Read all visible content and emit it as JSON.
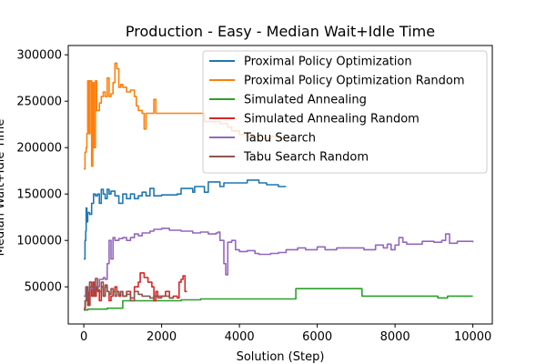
{
  "chart_data": {
    "type": "line",
    "title": "Production - Easy - Median Wait+Idle Time",
    "xlabel": "Solution (Step)",
    "ylabel": "Median Wait+Idle Time",
    "xlim": [
      -400,
      10500
    ],
    "ylim": [
      10000,
      310000
    ],
    "xticks": [
      0,
      2000,
      4000,
      6000,
      8000,
      10000
    ],
    "yticks": [
      50000,
      100000,
      150000,
      200000,
      250000,
      300000
    ],
    "legend_position": "top-right",
    "grid": false,
    "series": [
      {
        "name": "Proximal Policy Optimization",
        "color": "#1f77b4",
        "points": [
          [
            0,
            80000
          ],
          [
            20,
            80000
          ],
          [
            30,
            100000
          ],
          [
            50,
            110000
          ],
          [
            60,
            135000
          ],
          [
            80,
            120000
          ],
          [
            100,
            130000
          ],
          [
            150,
            128000
          ],
          [
            200,
            140000
          ],
          [
            250,
            150000
          ],
          [
            300,
            148000
          ],
          [
            350,
            150000
          ],
          [
            400,
            140000
          ],
          [
            450,
            155000
          ],
          [
            500,
            150000
          ],
          [
            550,
            145000
          ],
          [
            600,
            155000
          ],
          [
            650,
            150000
          ],
          [
            700,
            153000
          ],
          [
            800,
            148000
          ],
          [
            900,
            140000
          ],
          [
            1000,
            150000
          ],
          [
            1100,
            145000
          ],
          [
            1200,
            150000
          ],
          [
            1300,
            145000
          ],
          [
            1400,
            148000
          ],
          [
            1500,
            152000
          ],
          [
            1600,
            148000
          ],
          [
            1700,
            156000
          ],
          [
            1800,
            148000
          ],
          [
            2000,
            149000
          ],
          [
            2200,
            149000
          ],
          [
            2400,
            150000
          ],
          [
            2500,
            156000
          ],
          [
            2600,
            156000
          ],
          [
            2800,
            152000
          ],
          [
            2850,
            158000
          ],
          [
            3000,
            158000
          ],
          [
            3100,
            152000
          ],
          [
            3200,
            163000
          ],
          [
            3400,
            163000
          ],
          [
            3500,
            158000
          ],
          [
            3600,
            162000
          ],
          [
            4000,
            162000
          ],
          [
            4200,
            165000
          ],
          [
            4500,
            162000
          ],
          [
            4700,
            160000
          ],
          [
            5000,
            158000
          ],
          [
            5200,
            158000
          ]
        ]
      },
      {
        "name": "Proximal Policy Optimization Random",
        "color": "#ff7f0e",
        "points": [
          [
            0,
            177000
          ],
          [
            30,
            195000
          ],
          [
            60,
            200000
          ],
          [
            80,
            215000
          ],
          [
            100,
            272000
          ],
          [
            130,
            215000
          ],
          [
            160,
            272000
          ],
          [
            200,
            180000
          ],
          [
            230,
            270000
          ],
          [
            260,
            200000
          ],
          [
            300,
            272000
          ],
          [
            330,
            240000
          ],
          [
            360,
            240000
          ],
          [
            400,
            248000
          ],
          [
            450,
            255000
          ],
          [
            500,
            260000
          ],
          [
            550,
            255000
          ],
          [
            600,
            275000
          ],
          [
            650,
            255000
          ],
          [
            700,
            258000
          ],
          [
            750,
            270000
          ],
          [
            800,
            291000
          ],
          [
            850,
            285000
          ],
          [
            900,
            265000
          ],
          [
            950,
            268000
          ],
          [
            1000,
            265000
          ],
          [
            1100,
            260000
          ],
          [
            1200,
            262000
          ],
          [
            1300,
            255000
          ],
          [
            1350,
            245000
          ],
          [
            1400,
            240000
          ],
          [
            1500,
            237000
          ],
          [
            1550,
            220000
          ],
          [
            1600,
            237000
          ],
          [
            1700,
            237000
          ],
          [
            1800,
            252000
          ],
          [
            1850,
            237000
          ],
          [
            2000,
            237000
          ],
          [
            2500,
            237000
          ],
          [
            3000,
            237000
          ],
          [
            3100,
            228000
          ],
          [
            3300,
            228000
          ],
          [
            3500,
            226000
          ],
          [
            3700,
            222000
          ],
          [
            3800,
            218000
          ],
          [
            4000,
            214000
          ],
          [
            4200,
            212000
          ],
          [
            4500,
            210000
          ],
          [
            4800,
            212000
          ],
          [
            5000,
            210000
          ],
          [
            5200,
            210000
          ]
        ]
      },
      {
        "name": "Simulated Annealing",
        "color": "#2ca02c",
        "points": [
          [
            0,
            25000
          ],
          [
            100,
            26000
          ],
          [
            300,
            26000
          ],
          [
            600,
            27000
          ],
          [
            900,
            27000
          ],
          [
            1000,
            35000
          ],
          [
            1500,
            35000
          ],
          [
            2000,
            35000
          ],
          [
            2500,
            36000
          ],
          [
            3000,
            37000
          ],
          [
            4000,
            37000
          ],
          [
            5000,
            37000
          ],
          [
            5400,
            37000
          ],
          [
            5450,
            48000
          ],
          [
            6000,
            48000
          ],
          [
            6500,
            48000
          ],
          [
            7000,
            48000
          ],
          [
            7100,
            48000
          ],
          [
            7150,
            40000
          ],
          [
            8000,
            40000
          ],
          [
            9000,
            40000
          ],
          [
            9100,
            38000
          ],
          [
            9300,
            38000
          ],
          [
            9350,
            40000
          ],
          [
            10000,
            40000
          ]
        ]
      },
      {
        "name": "Simulated Annealing Random",
        "color": "#d62728",
        "points": [
          [
            0,
            27000
          ],
          [
            40,
            35000
          ],
          [
            80,
            45000
          ],
          [
            120,
            30000
          ],
          [
            160,
            50000
          ],
          [
            200,
            40000
          ],
          [
            240,
            55000
          ],
          [
            280,
            40000
          ],
          [
            320,
            50000
          ],
          [
            360,
            45000
          ],
          [
            400,
            35000
          ],
          [
            450,
            50000
          ],
          [
            500,
            40000
          ],
          [
            550,
            50000
          ],
          [
            600,
            45000
          ],
          [
            650,
            35000
          ],
          [
            700,
            40000
          ],
          [
            750,
            45000
          ],
          [
            800,
            50000
          ],
          [
            850,
            45000
          ],
          [
            900,
            40000
          ],
          [
            950,
            45000
          ],
          [
            1000,
            40000
          ],
          [
            1100,
            45000
          ],
          [
            1200,
            38000
          ],
          [
            1300,
            50000
          ],
          [
            1400,
            55000
          ],
          [
            1450,
            65000
          ],
          [
            1550,
            60000
          ],
          [
            1650,
            55000
          ],
          [
            1750,
            50000
          ],
          [
            1800,
            35000
          ],
          [
            1850,
            45000
          ],
          [
            1900,
            40000
          ],
          [
            2000,
            40000
          ],
          [
            2100,
            45000
          ],
          [
            2200,
            38000
          ],
          [
            2300,
            40000
          ],
          [
            2400,
            38000
          ],
          [
            2450,
            55000
          ],
          [
            2500,
            58000
          ],
          [
            2550,
            62000
          ],
          [
            2600,
            45000
          ],
          [
            2650,
            45000
          ]
        ]
      },
      {
        "name": "Tabu Search",
        "color": "#9467bd",
        "points": [
          [
            0,
            40000
          ],
          [
            50,
            50000
          ],
          [
            100,
            45000
          ],
          [
            150,
            55000
          ],
          [
            200,
            48000
          ],
          [
            300,
            50000
          ],
          [
            400,
            58000
          ],
          [
            500,
            60000
          ],
          [
            550,
            58000
          ],
          [
            600,
            75000
          ],
          [
            650,
            100000
          ],
          [
            700,
            80000
          ],
          [
            750,
            103000
          ],
          [
            800,
            100000
          ],
          [
            900,
            102000
          ],
          [
            1000,
            103000
          ],
          [
            1100,
            100000
          ],
          [
            1200,
            103000
          ],
          [
            1300,
            107000
          ],
          [
            1400,
            105000
          ],
          [
            1500,
            108000
          ],
          [
            1700,
            110000
          ],
          [
            1800,
            112000
          ],
          [
            2000,
            113000
          ],
          [
            2200,
            111000
          ],
          [
            2500,
            110000
          ],
          [
            2800,
            108000
          ],
          [
            3000,
            109000
          ],
          [
            3200,
            107000
          ],
          [
            3400,
            108000
          ],
          [
            3450,
            109000
          ],
          [
            3500,
            100000
          ],
          [
            3550,
            100000
          ],
          [
            3600,
            75000
          ],
          [
            3650,
            63000
          ],
          [
            3700,
            98000
          ],
          [
            3800,
            100000
          ],
          [
            3900,
            90000
          ],
          [
            4000,
            88000
          ],
          [
            4200,
            89000
          ],
          [
            4400,
            86000
          ],
          [
            4500,
            85000
          ],
          [
            4800,
            86000
          ],
          [
            5000,
            87000
          ],
          [
            5200,
            90000
          ],
          [
            5500,
            92000
          ],
          [
            5700,
            90000
          ],
          [
            6000,
            93000
          ],
          [
            6200,
            90000
          ],
          [
            6500,
            92000
          ],
          [
            7000,
            92000
          ],
          [
            7200,
            90000
          ],
          [
            7500,
            95000
          ],
          [
            7700,
            92000
          ],
          [
            7800,
            96000
          ],
          [
            7900,
            90000
          ],
          [
            8000,
            95000
          ],
          [
            8100,
            103000
          ],
          [
            8200,
            98000
          ],
          [
            8300,
            96000
          ],
          [
            8500,
            96000
          ],
          [
            8700,
            99000
          ],
          [
            9000,
            98000
          ],
          [
            9200,
            100000
          ],
          [
            9300,
            107000
          ],
          [
            9400,
            97000
          ],
          [
            9600,
            99000
          ],
          [
            9800,
            99000
          ],
          [
            10000,
            98000
          ]
        ]
      },
      {
        "name": "Tabu Search Random",
        "color": "#8c564b",
        "points": [
          [
            0,
            25000
          ],
          [
            30,
            35000
          ],
          [
            60,
            50000
          ],
          [
            100,
            30000
          ],
          [
            150,
            55000
          ],
          [
            200,
            50000
          ],
          [
            250,
            40000
          ],
          [
            300,
            59000
          ],
          [
            350,
            47000
          ],
          [
            400,
            45000
          ],
          [
            450,
            55000
          ],
          [
            500,
            40000
          ],
          [
            550,
            52000
          ],
          [
            600,
            45000
          ],
          [
            650,
            42000
          ],
          [
            700,
            48000
          ],
          [
            750,
            45000
          ],
          [
            800,
            40000
          ],
          [
            850,
            45000
          ],
          [
            900,
            42000
          ],
          [
            950,
            45000
          ],
          [
            1000,
            40000
          ],
          [
            1100,
            42000
          ],
          [
            1200,
            35000
          ],
          [
            1300,
            45000
          ],
          [
            1400,
            42000
          ],
          [
            1500,
            40000
          ],
          [
            1600,
            40000
          ],
          [
            1700,
            38000
          ],
          [
            1800,
            40000
          ],
          [
            1900,
            38000
          ],
          [
            2000,
            40000
          ],
          [
            2100,
            40000
          ],
          [
            2200,
            38000
          ],
          [
            2300,
            40000
          ]
        ]
      }
    ]
  }
}
